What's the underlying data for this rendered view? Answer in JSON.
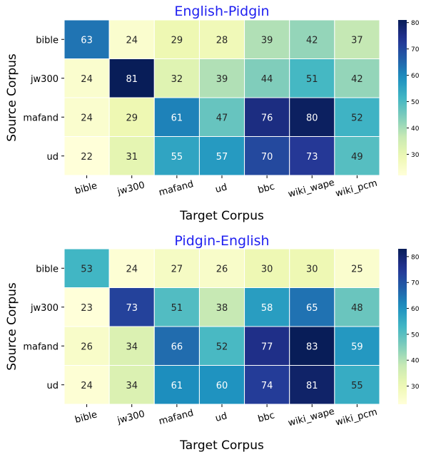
{
  "chart_data": [
    {
      "type": "heatmap",
      "title": "English-Pidgin",
      "xlabel": "Target Corpus",
      "ylabel": "Source Corpus",
      "x_categories": [
        "bible",
        "jw300",
        "mafand",
        "ud",
        "bbc",
        "wiki_wape",
        "wiki_pcm"
      ],
      "y_categories": [
        "bible",
        "jw300",
        "mafand",
        "ud"
      ],
      "values": [
        [
          63,
          24,
          29,
          28,
          39,
          42,
          37
        ],
        [
          24,
          81,
          32,
          39,
          44,
          51,
          42
        ],
        [
          24,
          29,
          61,
          47,
          76,
          80,
          52
        ],
        [
          22,
          31,
          55,
          57,
          70,
          73,
          49
        ]
      ],
      "colorbar": {
        "min": 22,
        "max": 81,
        "ticks": [
          30,
          40,
          50,
          60,
          70,
          80
        ]
      },
      "colormap": "YlGnBu"
    },
    {
      "type": "heatmap",
      "title": "Pidgin-English",
      "xlabel": "Target Corpus",
      "ylabel": "Source Corpus",
      "x_categories": [
        "bible",
        "jw300",
        "mafand",
        "ud",
        "bbc",
        "wiki_wape",
        "wiki_pcm"
      ],
      "y_categories": [
        "bible",
        "jw300",
        "mafand",
        "ud"
      ],
      "values": [
        [
          53,
          24,
          27,
          26,
          30,
          30,
          25
        ],
        [
          23,
          73,
          51,
          38,
          58,
          65,
          48
        ],
        [
          26,
          34,
          66,
          52,
          77,
          83,
          59
        ],
        [
          24,
          34,
          61,
          60,
          74,
          81,
          55
        ]
      ],
      "colorbar": {
        "min": 23,
        "max": 83,
        "ticks": [
          30,
          40,
          50,
          60,
          70,
          80
        ]
      },
      "colormap": "YlGnBu"
    }
  ],
  "colors": {
    "title": "#1f1ff0"
  }
}
